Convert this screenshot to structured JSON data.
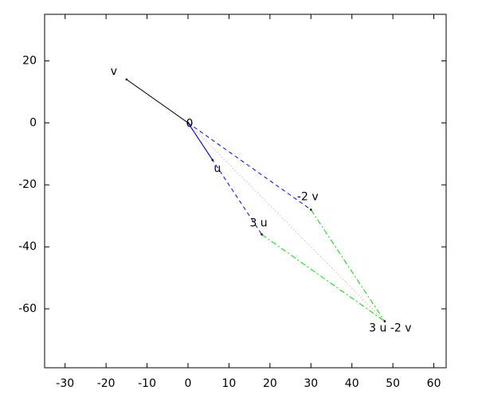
{
  "chart_data": {
    "type": "vector",
    "xlim": [
      -35,
      63
    ],
    "ylim": [
      -79,
      35
    ],
    "xticks": [
      -30,
      -20,
      -10,
      0,
      10,
      20,
      30,
      40,
      50,
      60
    ],
    "yticks": [
      20,
      0,
      -20,
      -40,
      -60
    ],
    "points": [
      {
        "label": "0",
        "x": 0,
        "y": 0
      },
      {
        "label": "v",
        "x": -15,
        "y": 14
      },
      {
        "label": "u",
        "x": 6,
        "y": -12
      },
      {
        "label": "3 u",
        "x": 18,
        "y": -36
      },
      {
        "label": "-2 v",
        "x": 30,
        "y": -28
      },
      {
        "label": "3 u -2 v",
        "x": 48,
        "y": -64
      }
    ],
    "segments": [
      {
        "x": [
          0,
          -15
        ],
        "y": [
          0,
          14
        ],
        "color": "#000000",
        "dash": "solid"
      },
      {
        "x": [
          0,
          6
        ],
        "y": [
          0,
          -12
        ],
        "color": "#000080",
        "dash": "solid"
      },
      {
        "x": [
          0,
          18
        ],
        "y": [
          0,
          -36
        ],
        "color": "#0000ff",
        "dash": "dashed"
      },
      {
        "x": [
          0,
          30
        ],
        "y": [
          0,
          -28
        ],
        "color": "#0000ff",
        "dash": "dashed"
      },
      {
        "x": [
          18,
          48
        ],
        "y": [
          -36,
          -64
        ],
        "color": "#00dd00",
        "dash": "dashdot"
      },
      {
        "x": [
          30,
          48
        ],
        "y": [
          -28,
          -64
        ],
        "color": "#00dd00",
        "dash": "dashdot"
      },
      {
        "x": [
          0,
          48
        ],
        "y": [
          0,
          -64
        ],
        "color": "#ff8080",
        "dash": "dotted"
      }
    ]
  }
}
